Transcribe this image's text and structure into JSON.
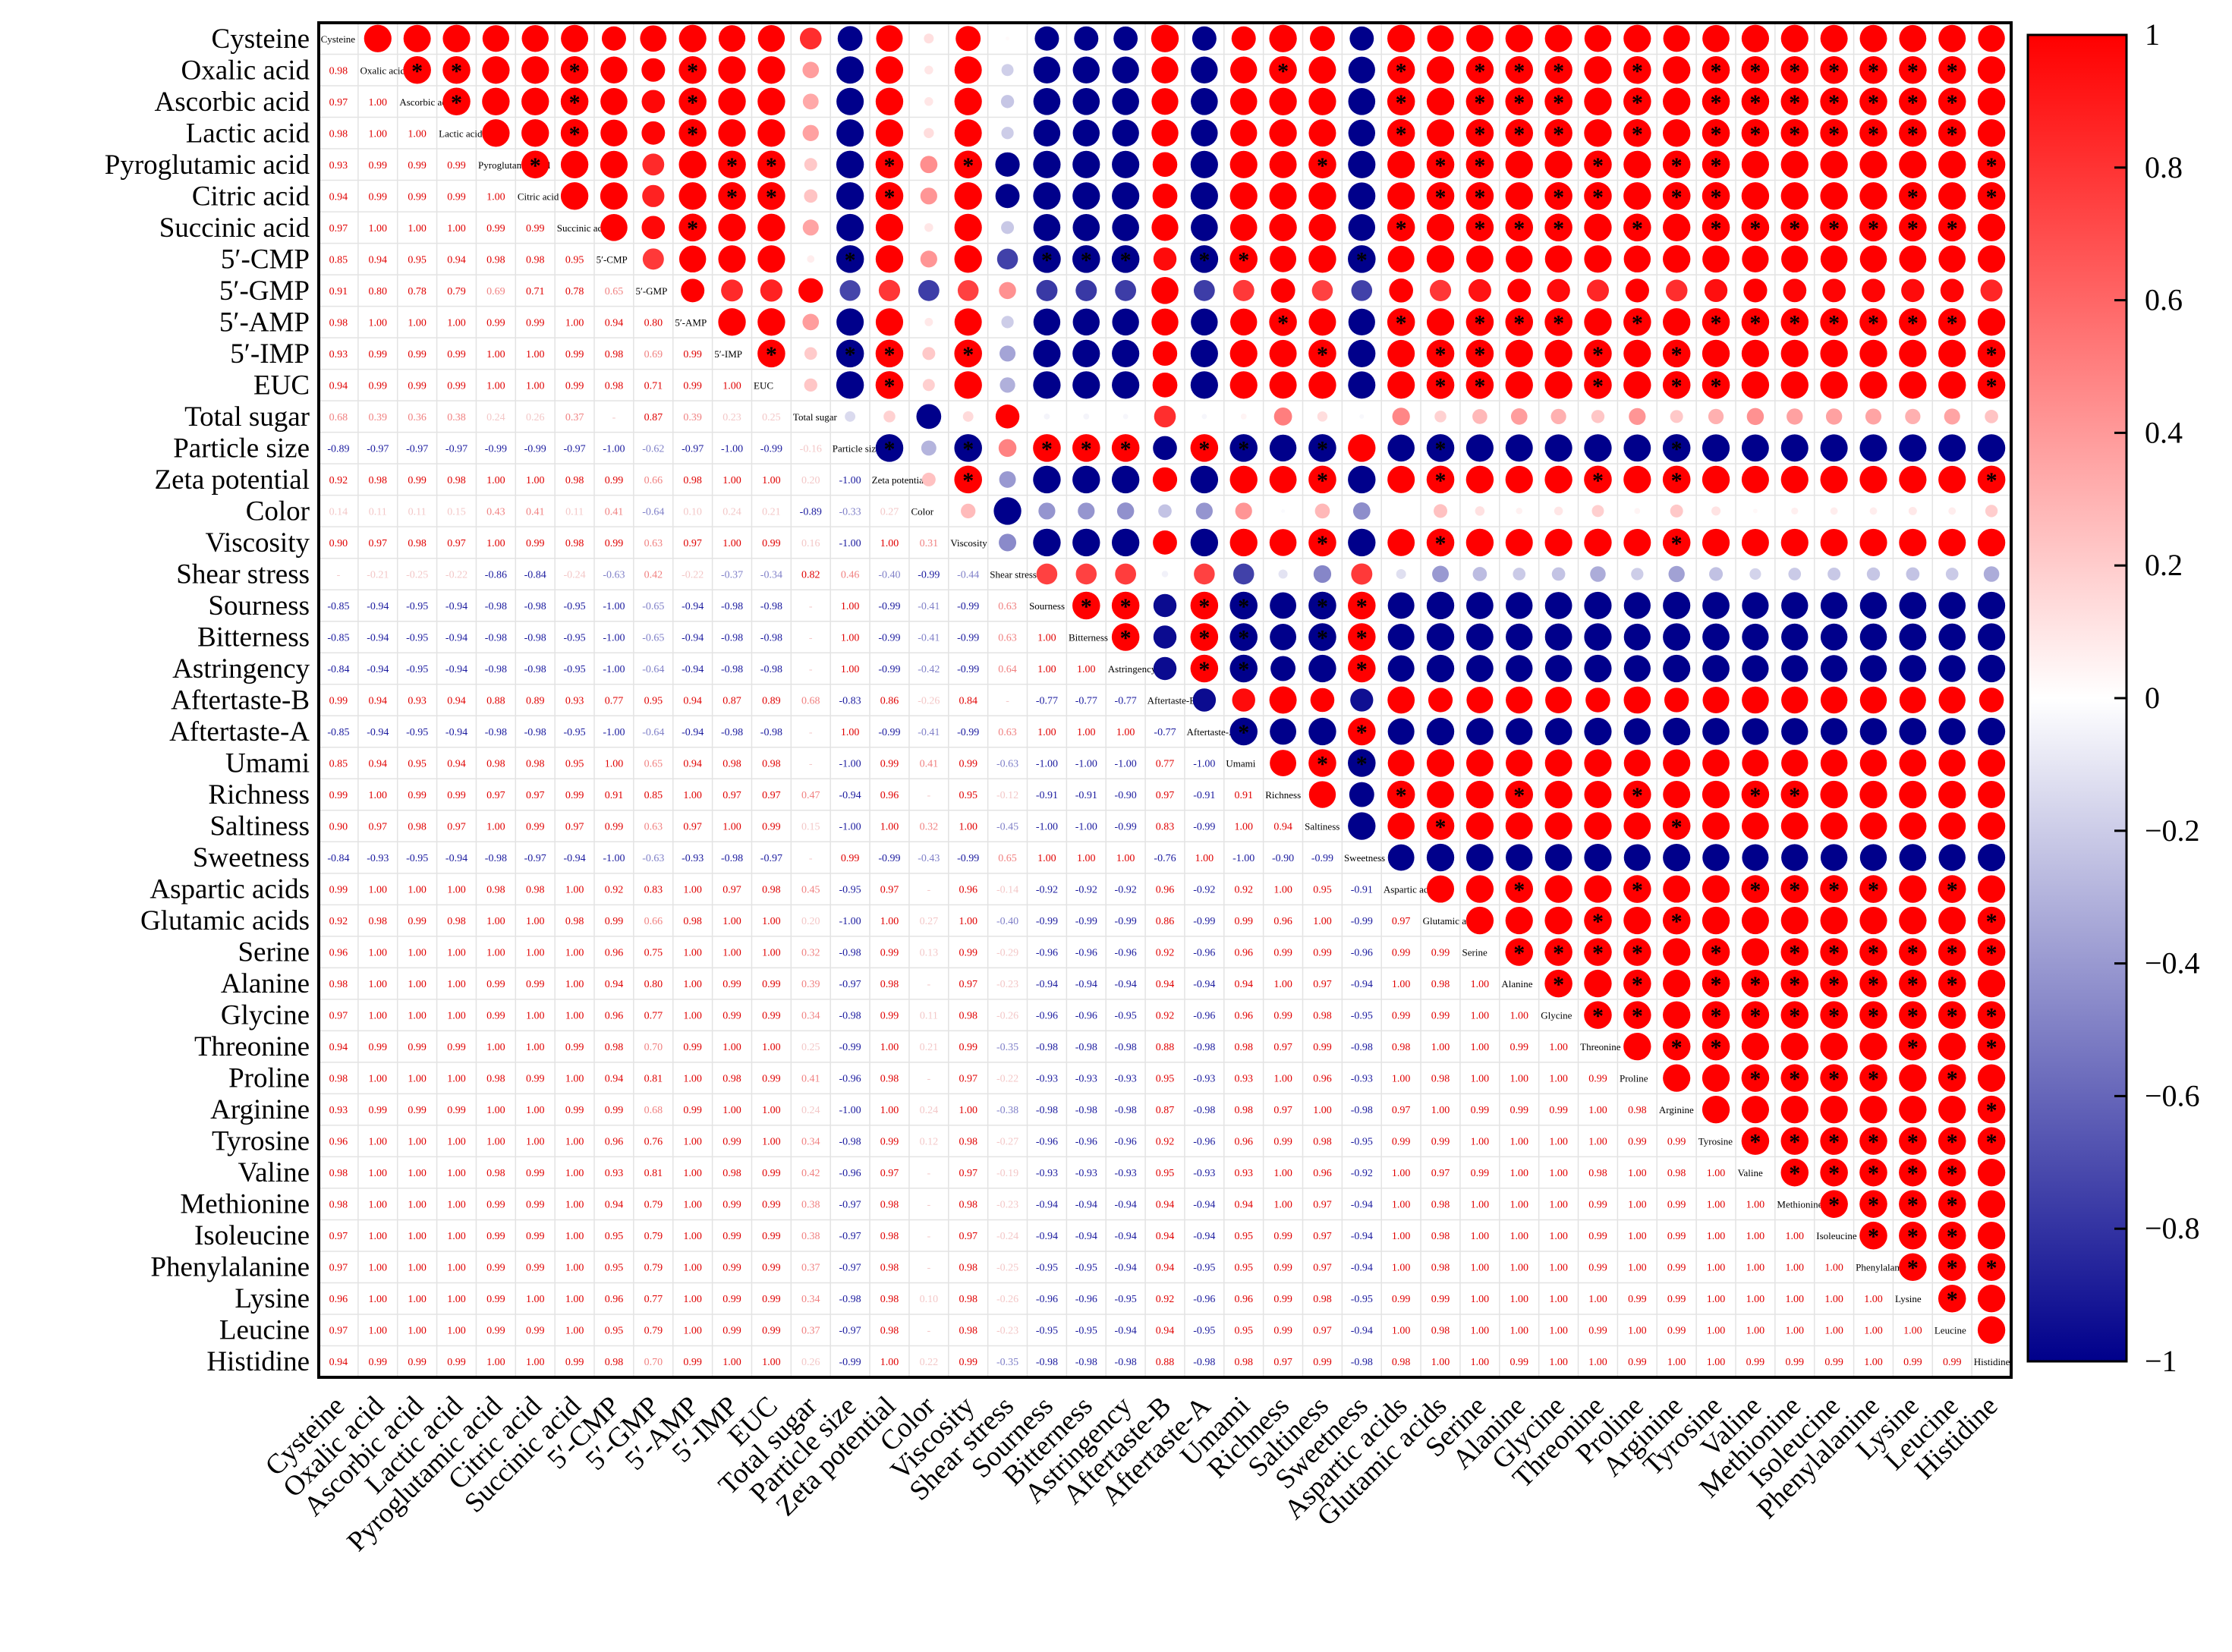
{
  "chart_data": {
    "type": "heatmap",
    "title": "",
    "variables": [
      "Cysteine",
      "Oxalic acid",
      "Ascorbic acid",
      "Lactic acid",
      "Pyroglutamic acid",
      "Citric acid",
      "Succinic acid",
      "5′-CMP",
      "5′-GMP",
      "5′-AMP",
      "5′-IMP",
      "EUC",
      "Total sugar",
      "Particle size",
      "Zeta potential",
      "Color",
      "Viscosity",
      "Shear stress",
      "Sourness",
      "Bitterness",
      "Astringency",
      "Aftertaste-B",
      "Aftertaste-A",
      "Umami",
      "Richness",
      "Saltiness",
      "Sweetness",
      "Aspartic acids",
      "Glutamic acids",
      "Serine",
      "Alanine",
      "Glycine",
      "Threonine",
      "Proline",
      "Arginine",
      "Tyrosine",
      "Valine",
      "Methionine",
      "Isoleucine",
      "Phenylalanine",
      "Lysine",
      "Leucine",
      "Histidine"
    ],
    "bottom_labels": [
      "Cysteine",
      "Oxalic acid",
      "Ascorbic acid",
      "Lactic acid",
      "Pyroglutamic acid",
      "Citric acid",
      "Succinic acid",
      "5′-CMP",
      "5′-GMP",
      "5′-AMP",
      "5′-IMP",
      "EUC",
      "Total sugar",
      "Particle size",
      "Zeta potential",
      "Color",
      "Viscosity",
      "Shear stress",
      "Sourness",
      "Bitterness",
      "Astringency",
      "Aftertaste-B",
      "Aftertaste-A",
      "Umami",
      "Richness",
      "Saltiness",
      "Sweetness",
      "Aspartic acids",
      "Glutamic acids",
      "Serine",
      "Alanine",
      "Glycine",
      "Threonine",
      "Proline",
      "Arginine",
      "Tyrosine",
      "Valine",
      "Methionine",
      "Isoleucine",
      "Phenylalanine",
      "Lysine",
      "Leucine",
      "Histidine"
    ],
    "diagonal_labels": [
      "Cysteine",
      "Oxalic acid",
      "Ascorbic acid",
      "Lactic acid",
      "Pyroglutamic acid",
      "Citric acid",
      "Succinic acid",
      "5′-CMP",
      "5′-GMP",
      "5′-AMP",
      "5′-IMP",
      "EUC",
      "Total sugar",
      "Particle size",
      "Zeta potential",
      "Color",
      "Viscosity",
      "Shear stress",
      "Sourness",
      "Bitterness",
      "Astringency",
      "Aftertaste-B",
      "Aftertaste-A",
      "Umami",
      "Richness",
      "Saltiness",
      "Sweetness",
      "Aspartic acids",
      "Glutamic acids",
      "Serine",
      "Alanine",
      "Glycine",
      "Threonine",
      "Proline",
      "Arginine",
      "Tyrosine",
      "Valine",
      "Methionine",
      "Isoleucine",
      "Phenylalanine",
      "Lysine",
      "Leucine",
      "Histidine"
    ],
    "lower_triangle": [
      [],
      [
        0.98
      ],
      [
        0.97,
        1.0
      ],
      [
        0.98,
        1.0,
        1.0
      ],
      [
        0.93,
        0.99,
        0.99,
        0.99
      ],
      [
        0.94,
        0.99,
        0.99,
        0.99,
        1.0
      ],
      [
        0.97,
        1.0,
        1.0,
        1.0,
        0.99,
        0.99
      ],
      [
        0.85,
        0.94,
        0.95,
        0.94,
        0.98,
        0.98,
        0.95
      ],
      [
        0.91,
        0.8,
        0.78,
        0.79,
        0.69,
        0.71,
        0.78,
        0.65
      ],
      [
        0.98,
        1.0,
        1.0,
        1.0,
        0.99,
        0.99,
        1.0,
        0.94,
        0.8
      ],
      [
        0.93,
        0.99,
        0.99,
        0.99,
        1.0,
        1.0,
        0.99,
        0.98,
        0.69,
        0.99
      ],
      [
        0.94,
        0.99,
        0.99,
        0.99,
        1.0,
        1.0,
        0.99,
        0.98,
        0.71,
        0.99,
        1.0
      ],
      [
        0.68,
        0.39,
        0.36,
        0.38,
        0.24,
        0.26,
        0.37,
        0.08,
        0.87,
        0.39,
        0.23,
        0.25
      ],
      [
        -0.89,
        -0.97,
        -0.97,
        -0.97,
        -0.99,
        -0.99,
        -0.97,
        -1.0,
        -0.62,
        -0.97,
        -1.0,
        -0.99,
        -0.16
      ],
      [
        0.92,
        0.98,
        0.99,
        0.98,
        1.0,
        1.0,
        0.98,
        0.99,
        0.66,
        0.98,
        1.0,
        1.0,
        0.2,
        -1.0
      ],
      [
        0.14,
        0.11,
        0.11,
        0.15,
        0.43,
        0.41,
        0.11,
        0.41,
        -0.64,
        0.1,
        0.24,
        0.21,
        -0.89,
        -0.33,
        0.27
      ],
      [
        0.9,
        0.97,
        0.98,
        0.97,
        1.0,
        0.99,
        0.98,
        0.99,
        0.63,
        0.97,
        1.0,
        0.99,
        0.16,
        -1.0,
        1.0,
        0.31
      ],
      [
        0.02,
        -0.21,
        -0.25,
        -0.22,
        -0.86,
        -0.84,
        -0.24,
        -0.63,
        0.42,
        -0.22,
        -0.37,
        -0.34,
        0.82,
        0.46,
        -0.4,
        -0.99,
        -0.44
      ],
      [
        -0.85,
        -0.94,
        -0.95,
        -0.94,
        -0.98,
        -0.98,
        -0.95,
        -1.0,
        -0.65,
        -0.94,
        -0.98,
        -0.98,
        -0.05,
        1.0,
        -0.99,
        -0.41,
        -0.99,
        0.63
      ],
      [
        -0.85,
        -0.94,
        -0.95,
        -0.94,
        -0.98,
        -0.98,
        -0.95,
        -1.0,
        -0.65,
        -0.94,
        -0.98,
        -0.98,
        -0.05,
        1.0,
        -0.99,
        -0.41,
        -0.99,
        0.63,
        1.0
      ],
      [
        -0.84,
        -0.94,
        -0.95,
        -0.94,
        -0.98,
        -0.98,
        -0.95,
        -1.0,
        -0.64,
        -0.94,
        -0.98,
        -0.98,
        -0.04,
        1.0,
        -0.99,
        -0.42,
        -0.99,
        0.64,
        1.0,
        1.0
      ],
      [
        0.99,
        0.94,
        0.93,
        0.94,
        0.88,
        0.89,
        0.93,
        0.77,
        0.95,
        0.94,
        0.87,
        0.89,
        0.68,
        -0.83,
        0.86,
        -0.26,
        0.84,
        -0.06,
        -0.77,
        -0.77,
        -0.77
      ],
      [
        -0.85,
        -0.94,
        -0.95,
        -0.94,
        -0.98,
        -0.98,
        -0.95,
        -1.0,
        -0.64,
        -0.94,
        -0.98,
        -0.98,
        -0.04,
        1.0,
        -0.99,
        -0.41,
        -0.99,
        0.63,
        1.0,
        1.0,
        1.0,
        -0.77
      ],
      [
        0.85,
        0.94,
        0.95,
        0.94,
        0.98,
        0.98,
        0.95,
        1.0,
        0.65,
        0.94,
        0.98,
        0.98,
        0.05,
        -1.0,
        0.99,
        0.41,
        0.99,
        -0.63,
        -1.0,
        -1.0,
        -1.0,
        0.77,
        -1.0
      ],
      [
        0.99,
        1.0,
        0.99,
        0.99,
        0.97,
        0.97,
        0.99,
        0.91,
        0.85,
        1.0,
        0.97,
        0.97,
        0.47,
        -0.94,
        0.96,
        -0.02,
        0.95,
        -0.12,
        -0.91,
        -0.91,
        -0.9,
        0.97,
        -0.91,
        0.91
      ],
      [
        0.9,
        0.97,
        0.98,
        0.97,
        1.0,
        0.99,
        0.97,
        0.99,
        0.63,
        0.97,
        1.0,
        0.99,
        0.15,
        -1.0,
        1.0,
        0.32,
        1.0,
        -0.45,
        -1.0,
        -1.0,
        -0.99,
        0.83,
        -0.99,
        1.0,
        0.94
      ],
      [
        -0.84,
        -0.93,
        -0.95,
        -0.94,
        -0.98,
        -0.97,
        -0.94,
        -1.0,
        -0.63,
        -0.93,
        -0.98,
        -0.97,
        -0.03,
        0.99,
        -0.99,
        -0.43,
        -0.99,
        0.65,
        1.0,
        1.0,
        1.0,
        -0.76,
        1.0,
        -1.0,
        -0.9,
        -0.99
      ],
      [
        0.99,
        1.0,
        1.0,
        1.0,
        0.98,
        0.98,
        1.0,
        0.92,
        0.83,
        1.0,
        0.97,
        0.98,
        0.45,
        -0.95,
        0.97,
        0.0,
        0.96,
        -0.14,
        -0.92,
        -0.92,
        -0.92,
        0.96,
        -0.92,
        0.92,
        1.0,
        0.95,
        -0.91
      ],
      [
        0.92,
        0.98,
        0.99,
        0.98,
        1.0,
        1.0,
        0.98,
        0.99,
        0.66,
        0.98,
        1.0,
        1.0,
        0.2,
        -1.0,
        1.0,
        0.27,
        1.0,
        -0.4,
        -0.99,
        -0.99,
        -0.99,
        0.86,
        -0.99,
        0.99,
        0.96,
        1.0,
        -0.99,
        0.97
      ],
      [
        0.96,
        1.0,
        1.0,
        1.0,
        1.0,
        1.0,
        1.0,
        0.96,
        0.75,
        1.0,
        1.0,
        1.0,
        0.32,
        -0.98,
        0.99,
        0.13,
        0.99,
        -0.29,
        -0.96,
        -0.96,
        -0.96,
        0.92,
        -0.96,
        0.96,
        0.99,
        0.99,
        -0.96,
        0.99,
        0.99
      ],
      [
        0.98,
        1.0,
        1.0,
        1.0,
        0.99,
        0.99,
        1.0,
        0.94,
        0.8,
        1.0,
        0.99,
        0.99,
        0.39,
        -0.97,
        0.98,
        0.06,
        0.97,
        -0.23,
        -0.94,
        -0.94,
        -0.94,
        0.94,
        -0.94,
        0.94,
        1.0,
        0.97,
        -0.94,
        1.0,
        0.98,
        1.0
      ],
      [
        0.97,
        1.0,
        1.0,
        1.0,
        0.99,
        1.0,
        1.0,
        0.96,
        0.77,
        1.0,
        0.99,
        0.99,
        0.34,
        -0.98,
        0.99,
        0.11,
        0.98,
        -0.26,
        -0.96,
        -0.96,
        -0.95,
        0.92,
        -0.96,
        0.96,
        0.99,
        0.98,
        -0.95,
        0.99,
        0.99,
        1.0,
        1.0
      ],
      [
        0.94,
        0.99,
        0.99,
        0.99,
        1.0,
        1.0,
        0.99,
        0.98,
        0.7,
        0.99,
        1.0,
        1.0,
        0.25,
        -0.99,
        1.0,
        0.21,
        0.99,
        -0.35,
        -0.98,
        -0.98,
        -0.98,
        0.88,
        -0.98,
        0.98,
        0.97,
        0.99,
        -0.98,
        0.98,
        1.0,
        1.0,
        0.99,
        1.0
      ],
      [
        0.98,
        1.0,
        1.0,
        1.0,
        0.98,
        0.99,
        1.0,
        0.94,
        0.81,
        1.0,
        0.98,
        0.99,
        0.41,
        -0.96,
        0.98,
        0.05,
        0.97,
        -0.22,
        -0.93,
        -0.93,
        -0.93,
        0.95,
        -0.93,
        0.93,
        1.0,
        0.96,
        -0.93,
        1.0,
        0.98,
        1.0,
        1.0,
        1.0,
        0.99
      ],
      [
        0.93,
        0.99,
        0.99,
        0.99,
        1.0,
        1.0,
        0.99,
        0.99,
        0.68,
        0.99,
        1.0,
        1.0,
        0.24,
        -1.0,
        1.0,
        0.24,
        1.0,
        -0.38,
        -0.98,
        -0.98,
        -0.98,
        0.87,
        -0.98,
        0.98,
        0.97,
        1.0,
        -0.98,
        0.97,
        1.0,
        0.99,
        0.99,
        0.99,
        1.0,
        0.98
      ],
      [
        0.96,
        1.0,
        1.0,
        1.0,
        1.0,
        1.0,
        1.0,
        0.96,
        0.76,
        1.0,
        0.99,
        1.0,
        0.34,
        -0.98,
        0.99,
        0.12,
        0.98,
        -0.27,
        -0.96,
        -0.96,
        -0.96,
        0.92,
        -0.96,
        0.96,
        0.99,
        0.98,
        -0.95,
        0.99,
        0.99,
        1.0,
        1.0,
        1.0,
        1.0,
        0.99,
        0.99
      ],
      [
        0.98,
        1.0,
        1.0,
        1.0,
        0.98,
        0.99,
        1.0,
        0.93,
        0.81,
        1.0,
        0.98,
        0.99,
        0.42,
        -0.96,
        0.97,
        0.03,
        0.97,
        -0.19,
        -0.93,
        -0.93,
        -0.93,
        0.95,
        -0.93,
        0.93,
        1.0,
        0.96,
        -0.92,
        1.0,
        0.97,
        0.99,
        1.0,
        1.0,
        0.98,
        1.0,
        0.98,
        1.0
      ],
      [
        0.98,
        1.0,
        1.0,
        1.0,
        0.99,
        0.99,
        1.0,
        0.94,
        0.79,
        1.0,
        0.99,
        0.99,
        0.38,
        -0.97,
        0.98,
        0.07,
        0.98,
        -0.23,
        -0.94,
        -0.94,
        -0.94,
        0.94,
        -0.94,
        0.94,
        1.0,
        0.97,
        -0.94,
        1.0,
        0.98,
        1.0,
        1.0,
        1.0,
        0.99,
        1.0,
        0.99,
        1.0,
        1.0
      ],
      [
        0.97,
        1.0,
        1.0,
        1.0,
        0.99,
        0.99,
        1.0,
        0.95,
        0.79,
        1.0,
        0.99,
        0.99,
        0.38,
        -0.97,
        0.98,
        0.08,
        0.97,
        -0.24,
        -0.94,
        -0.94,
        -0.94,
        0.94,
        -0.94,
        0.95,
        0.99,
        0.97,
        -0.94,
        1.0,
        0.98,
        1.0,
        1.0,
        1.0,
        0.99,
        1.0,
        0.99,
        1.0,
        1.0,
        1.0
      ],
      [
        0.97,
        1.0,
        1.0,
        1.0,
        0.99,
        0.99,
        1.0,
        0.95,
        0.79,
        1.0,
        0.99,
        0.99,
        0.37,
        -0.97,
        0.98,
        0.08,
        0.98,
        -0.25,
        -0.95,
        -0.95,
        -0.94,
        0.94,
        -0.95,
        0.95,
        0.99,
        0.97,
        -0.94,
        1.0,
        0.98,
        1.0,
        1.0,
        1.0,
        0.99,
        1.0,
        0.99,
        1.0,
        1.0,
        1.0,
        1.0
      ],
      [
        0.96,
        1.0,
        1.0,
        1.0,
        0.99,
        1.0,
        1.0,
        0.96,
        0.77,
        1.0,
        0.99,
        0.99,
        0.34,
        -0.98,
        0.98,
        0.1,
        0.98,
        -0.26,
        -0.96,
        -0.96,
        -0.95,
        0.92,
        -0.96,
        0.96,
        0.99,
        0.98,
        -0.95,
        0.99,
        0.99,
        1.0,
        1.0,
        1.0,
        1.0,
        0.99,
        0.99,
        1.0,
        1.0,
        1.0,
        1.0,
        1.0
      ],
      [
        0.97,
        1.0,
        1.0,
        1.0,
        0.99,
        0.99,
        1.0,
        0.95,
        0.79,
        1.0,
        0.99,
        0.99,
        0.37,
        -0.97,
        0.98,
        0.08,
        0.98,
        -0.23,
        -0.95,
        -0.95,
        -0.94,
        0.94,
        -0.95,
        0.95,
        0.99,
        0.97,
        -0.94,
        1.0,
        0.98,
        1.0,
        1.0,
        1.0,
        0.99,
        1.0,
        0.99,
        1.0,
        1.0,
        1.0,
        1.0,
        1.0,
        1.0
      ],
      [
        0.94,
        0.99,
        0.99,
        0.99,
        1.0,
        1.0,
        0.99,
        0.98,
        0.7,
        0.99,
        1.0,
        1.0,
        0.26,
        -0.99,
        1.0,
        0.22,
        0.99,
        -0.35,
        -0.98,
        -0.98,
        -0.98,
        0.88,
        -0.98,
        0.98,
        0.97,
        0.99,
        -0.98,
        0.98,
        1.0,
        1.0,
        0.99,
        1.0,
        1.0,
        0.99,
        1.0,
        1.0,
        0.99,
        0.99,
        0.99,
        1.0,
        0.99,
        0.99
      ]
    ],
    "colorbar": {
      "min": -1,
      "max": 1,
      "ticks": [
        1,
        0.8,
        0.6,
        0.4,
        0.2,
        0,
        -0.2,
        -0.4,
        -0.6,
        -0.8,
        -1
      ],
      "tick_labels": [
        "1",
        "0.8",
        "0.6",
        "0.4",
        "0.2",
        "0",
        "−0.2",
        "−0.4",
        "−0.6",
        "−0.8",
        "−1"
      ],
      "colors": {
        "negative": "#00008b",
        "zero": "#ffffff",
        "positive": "#ff0000"
      }
    },
    "significance_marker": "*",
    "upper_triangle": "circles sized and coloured by correlation value; '*' marks significant pairs"
  }
}
